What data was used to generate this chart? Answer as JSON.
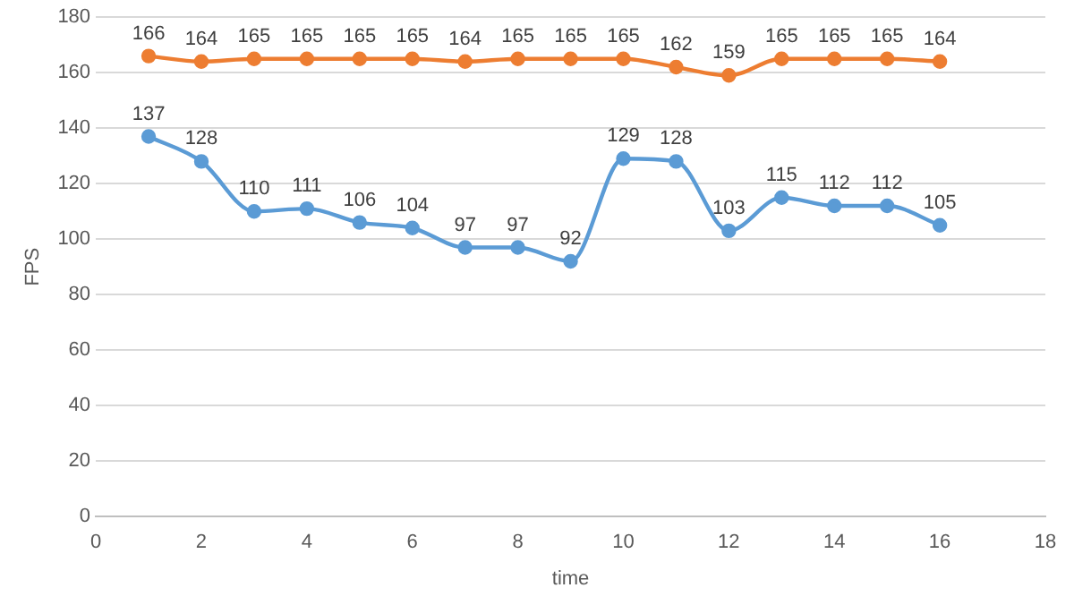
{
  "chart_data": {
    "type": "line",
    "xlabel": "time",
    "ylabel": "FPS",
    "x": [
      1,
      2,
      3,
      4,
      5,
      6,
      7,
      8,
      9,
      10,
      11,
      12,
      13,
      14,
      15,
      16
    ],
    "series": [
      {
        "color": "#5b9bd5",
        "values": [
          137,
          128,
          110,
          111,
          106,
          104,
          97,
          97,
          92,
          129,
          128,
          103,
          115,
          112,
          112,
          105
        ]
      },
      {
        "color": "#ed7d31",
        "values": [
          166,
          164,
          165,
          165,
          165,
          165,
          164,
          165,
          165,
          165,
          162,
          159,
          165,
          165,
          165,
          164
        ]
      }
    ],
    "xlim": [
      0,
      18
    ],
    "xticks": [
      0,
      2,
      4,
      6,
      8,
      10,
      12,
      14,
      16,
      18
    ],
    "ylim": [
      0,
      180
    ],
    "yticks": [
      0,
      20,
      40,
      60,
      80,
      100,
      120,
      140,
      160,
      180
    ],
    "grid": "y",
    "marker": "circle",
    "line_style": "solid",
    "data_labels": true,
    "legend": false
  }
}
